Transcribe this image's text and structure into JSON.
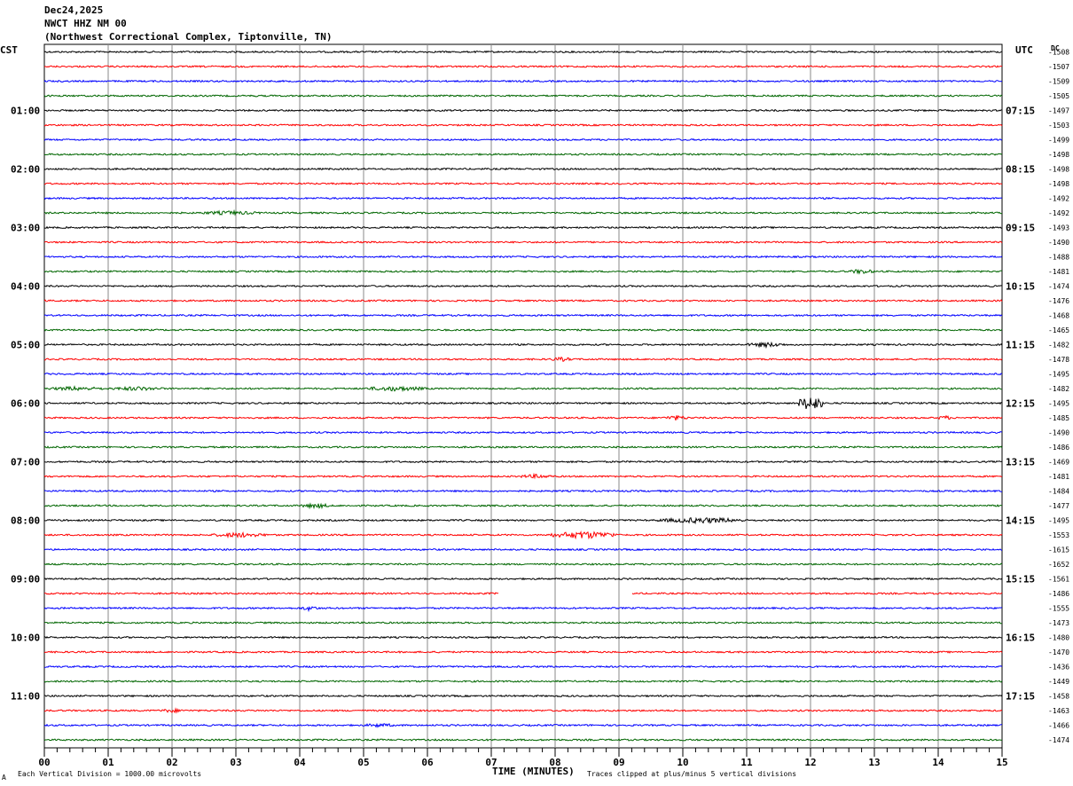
{
  "header": {
    "date": "Dec24,2025",
    "station": "NWCT HHZ NM 00",
    "location": "(Northwest Correctional Complex, Tiptonville, TN)"
  },
  "left_tz": "CST",
  "right_tz": "UTC",
  "right_col_header": "DC",
  "footer": {
    "vertical_division": "Each Vertical Division = 1000.00 microvolts",
    "xlabel": "TIME (MINUTES)",
    "clip_note": "Traces clipped at plus/minus 5 vertical divisions",
    "corner_mark": "A"
  },
  "chart_data": {
    "type": "line",
    "title": "",
    "xlabel": "TIME (MINUTES)",
    "xlim": [
      0,
      15
    ],
    "x_ticks": [
      "00",
      "01",
      "02",
      "03",
      "04",
      "05",
      "06",
      "07",
      "08",
      "09",
      "10",
      "11",
      "12",
      "13",
      "14",
      "15"
    ],
    "trace_count": 48,
    "trace_colors": [
      "#000000",
      "#ff0000",
      "#0000ff",
      "#006600"
    ],
    "left_hour_labels": [
      {
        "trace": 4,
        "label": "01:00"
      },
      {
        "trace": 8,
        "label": "02:00"
      },
      {
        "trace": 12,
        "label": "03:00"
      },
      {
        "trace": 16,
        "label": "04:00"
      },
      {
        "trace": 20,
        "label": "05:00"
      },
      {
        "trace": 24,
        "label": "06:00"
      },
      {
        "trace": 28,
        "label": "07:00"
      },
      {
        "trace": 32,
        "label": "08:00"
      },
      {
        "trace": 36,
        "label": "09:00"
      },
      {
        "trace": 40,
        "label": "10:00"
      },
      {
        "trace": 44,
        "label": "11:00"
      }
    ],
    "right_hour_labels": [
      {
        "trace": 4,
        "label": "07:15"
      },
      {
        "trace": 8,
        "label": "08:15"
      },
      {
        "trace": 12,
        "label": "09:15"
      },
      {
        "trace": 16,
        "label": "10:15"
      },
      {
        "trace": 20,
        "label": "11:15"
      },
      {
        "trace": 24,
        "label": "12:15"
      },
      {
        "trace": 28,
        "label": "13:15"
      },
      {
        "trace": 32,
        "label": "14:15"
      },
      {
        "trace": 36,
        "label": "15:15"
      },
      {
        "trace": 40,
        "label": "16:15"
      },
      {
        "trace": 44,
        "label": "17:15"
      }
    ],
    "dc_offsets": [
      -1508,
      -1507,
      -1509,
      -1505,
      -1497,
      -1503,
      -1499,
      -1498,
      -1498,
      -1498,
      -1492,
      -1492,
      -1493,
      -1490,
      -1488,
      -1481,
      -1474,
      -1476,
      -1468,
      -1465,
      -1482,
      -1478,
      -1495,
      -1482,
      -1495,
      -1485,
      -1490,
      -1486,
      -1469,
      -1481,
      -1484,
      -1477,
      -1495,
      -1553,
      -1615,
      -1652,
      -1561,
      -1486,
      -1555,
      -1473,
      -1480,
      -1470,
      -1436,
      -1449,
      -1458,
      -1463,
      -1466,
      -1474
    ],
    "events": [
      {
        "trace": 20,
        "x0": 11.0,
        "x1": 11.6,
        "amp": 3
      },
      {
        "trace": 24,
        "x0": 11.8,
        "x1": 12.2,
        "amp": 9
      },
      {
        "trace": 25,
        "x0": 9.7,
        "x1": 10.1,
        "amp": 3
      },
      {
        "trace": 25,
        "x0": 14.0,
        "x1": 14.2,
        "amp": 3
      },
      {
        "trace": 23,
        "x0": 0.0,
        "x1": 1.0,
        "amp": 2.5
      },
      {
        "trace": 23,
        "x0": 1.0,
        "x1": 1.9,
        "amp": 2.5
      },
      {
        "trace": 23,
        "x0": 5.0,
        "x1": 6.0,
        "amp": 3
      },
      {
        "trace": 11,
        "x0": 2.4,
        "x1": 3.4,
        "amp": 2.5
      },
      {
        "trace": 15,
        "x0": 12.6,
        "x1": 13.0,
        "amp": 3
      },
      {
        "trace": 31,
        "x0": 4.0,
        "x1": 4.5,
        "amp": 3
      },
      {
        "trace": 32,
        "x0": 9.6,
        "x1": 11.0,
        "amp": 3.5
      },
      {
        "trace": 33,
        "x0": 2.6,
        "x1": 3.5,
        "amp": 3
      },
      {
        "trace": 33,
        "x0": 7.9,
        "x1": 9.0,
        "amp": 4.5
      },
      {
        "trace": 29,
        "x0": 7.4,
        "x1": 8.0,
        "amp": 2.5
      },
      {
        "trace": 38,
        "x0": 4.0,
        "x1": 4.3,
        "amp": 3
      },
      {
        "trace": 45,
        "x0": 1.8,
        "x1": 2.2,
        "amp": 2.5
      },
      {
        "trace": 21,
        "x0": 7.9,
        "x1": 8.3,
        "amp": 2.5
      },
      {
        "trace": 46,
        "x0": 5.0,
        "x1": 5.5,
        "amp": 2.5
      }
    ],
    "gaps": [
      {
        "trace": 37,
        "x0": 7.12,
        "x1": 9.2
      }
    ]
  }
}
